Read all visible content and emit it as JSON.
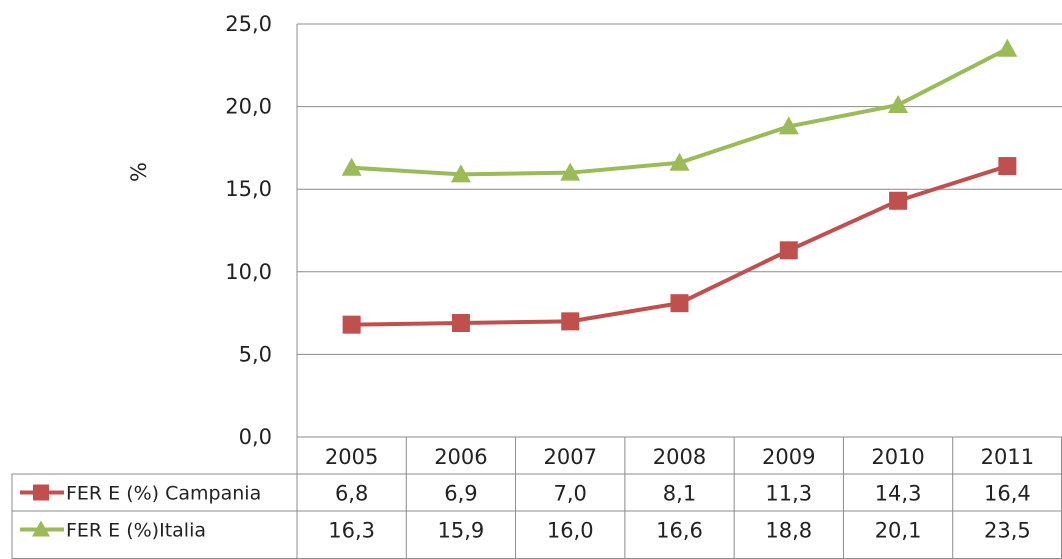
{
  "chart_data": {
    "type": "line",
    "ylabel": "%",
    "ylim": [
      0,
      25
    ],
    "yticks": [
      "0,0",
      "5,0",
      "10,0",
      "15,0",
      "20,0",
      "25,0"
    ],
    "ytick_values": [
      0,
      5,
      10,
      15,
      20,
      25
    ],
    "grid": "horizontal",
    "legend": "data table below chart",
    "categories": [
      "2005",
      "2006",
      "2007",
      "2008",
      "2009",
      "2010",
      "2011"
    ],
    "series": [
      {
        "name": "FER E (%) Campania",
        "values": [
          6.8,
          6.9,
          7.0,
          8.1,
          11.3,
          14.3,
          16.4
        ],
        "labels": [
          "6,8",
          "6,9",
          "7,0",
          "8,1",
          "11,3",
          "14,3",
          "16,4"
        ],
        "color": "#c0504d",
        "marker": "square"
      },
      {
        "name": "FER E (%)Italia",
        "values": [
          16.3,
          15.9,
          16.0,
          16.6,
          18.8,
          20.1,
          23.5
        ],
        "labels": [
          "16,3",
          "15,9",
          "16,0",
          "16,6",
          "18,8",
          "20,1",
          "23,5"
        ],
        "color": "#9bbb59",
        "marker": "triangle"
      }
    ]
  }
}
